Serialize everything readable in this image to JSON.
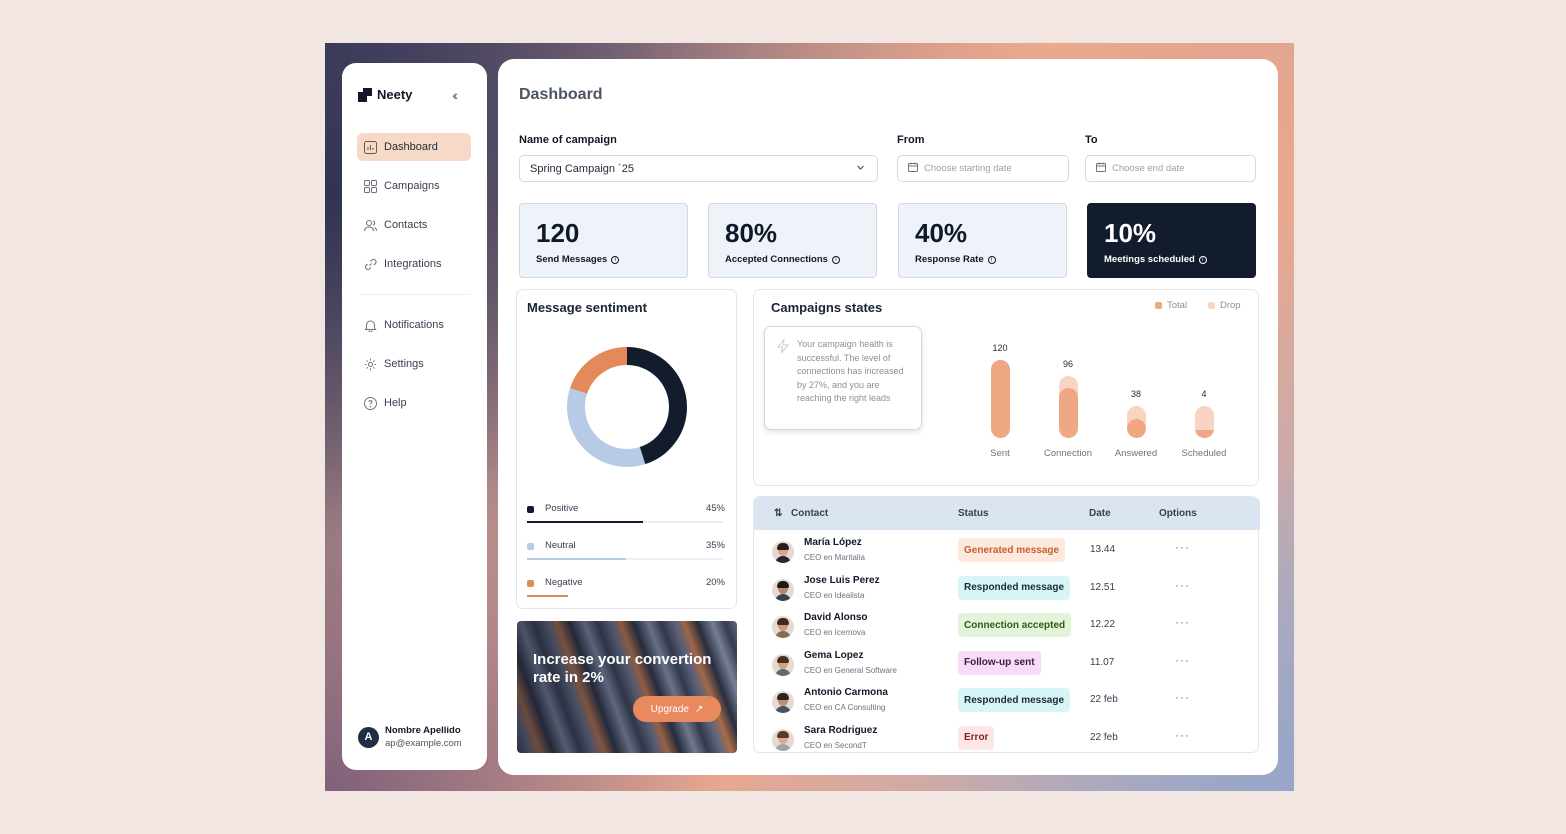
{
  "brand": {
    "name": "Neety"
  },
  "sidebar": {
    "items": [
      {
        "label": "Dashboard",
        "icon": "chart-icon"
      },
      {
        "label": "Campaigns",
        "icon": "grid-icon"
      },
      {
        "label": "Contacts",
        "icon": "users-icon"
      },
      {
        "label": "Integrations",
        "icon": "link-icon"
      },
      {
        "label": "Notifications",
        "icon": "bell-icon"
      },
      {
        "label": "Settings",
        "icon": "gear-icon"
      },
      {
        "label": "Help",
        "icon": "help-icon"
      }
    ],
    "user": {
      "initial": "A",
      "name": "Nombre Apellido",
      "email": "ap@example.com"
    }
  },
  "header": {
    "title": "Dashboard"
  },
  "filters": {
    "campaign_label": "Name of campaign",
    "campaign_value": "Spring Campaign ´25",
    "from_label": "From",
    "from_placeholder": "Choose starting date",
    "to_label": "To",
    "to_placeholder": "Choose end date"
  },
  "kpis": [
    {
      "value": "120",
      "label": "Send Messages"
    },
    {
      "value": "80%",
      "label": "Accepted Connections"
    },
    {
      "value": "40%",
      "label": "Response Rate"
    },
    {
      "value": "10%",
      "label": "Meetings scheduled"
    }
  ],
  "sentiment": {
    "title": "Message sentiment",
    "items": [
      {
        "name": "Positive",
        "percent": "45%",
        "value": 45,
        "color": "#121c2c"
      },
      {
        "name": "Neutral",
        "percent": "35%",
        "value": 35,
        "color": "#b7cbe6"
      },
      {
        "name": "Negative",
        "percent": "20%",
        "value": 20,
        "color": "#e4895a"
      }
    ]
  },
  "promo": {
    "text": "Increase your convertion rate in 2%",
    "button": "Upgrade"
  },
  "campaign_states": {
    "title": "Campaigns states",
    "legend_total": "Total",
    "legend_drop": "Drop",
    "note": "Your campaign health is successful. The level of connections has increased by 27%, and you are reaching the right leads",
    "colors": {
      "total": "#f0a783",
      "drop": "#f8d4c2"
    }
  },
  "chart_data": {
    "type": "bar",
    "categories": [
      "Sent",
      "Connection",
      "Answered",
      "Scheduled"
    ],
    "series": [
      {
        "name": "Total",
        "values": [
          120,
          96,
          38,
          4
        ]
      }
    ],
    "labels": [
      "120",
      "96",
      "38",
      "4"
    ]
  },
  "table": {
    "headers": {
      "contact": "Contact",
      "status": "Status",
      "date": "Date",
      "options": "Options"
    },
    "rows": [
      {
        "name": "María López",
        "role": "CEO en Maritalia",
        "status": "Generated message",
        "date": "13.44",
        "badge_bg": "#fde9dc",
        "badge_fg": "#c2622f"
      },
      {
        "name": "Jose Luis Perez",
        "role": "CEO en Idealista",
        "status": "Responded message",
        "date": "12.51",
        "badge_bg": "#d7f5f7",
        "badge_fg": "#1f2a37"
      },
      {
        "name": "David Alonso",
        "role": "CEO en Icernova",
        "status": "Connection accepted",
        "date": "12.22",
        "badge_bg": "#e3f5d8",
        "badge_fg": "#2f5a1c"
      },
      {
        "name": "Gema Lopez",
        "role": "CEO en General Software",
        "status": "Follow-up sent",
        "date": "11.07",
        "badge_bg": "#f6dcf7",
        "badge_fg": "#3d1b45"
      },
      {
        "name": "Antonio Carmona",
        "role": "CEO en CA Consulting",
        "status": "Responded message",
        "date": "22 feb",
        "badge_bg": "#d7f5f7",
        "badge_fg": "#1f2a37"
      },
      {
        "name": "Sara Rodriguez",
        "role": "CEO en SecondT",
        "status": "Error",
        "date": "22 feb",
        "badge_bg": "#fde6e6",
        "badge_fg": "#8a1f1f"
      }
    ]
  }
}
